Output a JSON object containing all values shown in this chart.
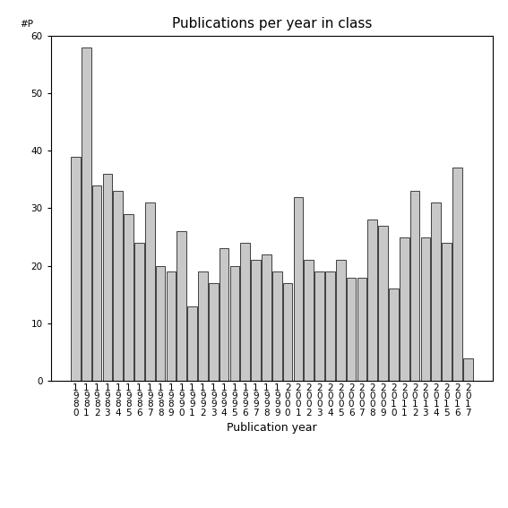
{
  "title": "Publications per year in class",
  "xlabel": "Publication year",
  "ylabel": "#P",
  "years": [
    1980,
    1981,
    1982,
    1983,
    1984,
    1985,
    1986,
    1987,
    1988,
    1989,
    1990,
    1991,
    1992,
    1993,
    1994,
    1995,
    1996,
    1997,
    1998,
    1999,
    2000,
    2001,
    2002,
    2003,
    2004,
    2005,
    2006,
    2007,
    2008,
    2009,
    2010,
    2011,
    2012,
    2013,
    2014,
    2015,
    2016,
    2017
  ],
  "values": [
    39,
    58,
    34,
    36,
    33,
    29,
    24,
    31,
    20,
    19,
    26,
    13,
    19,
    17,
    23,
    20,
    24,
    21,
    22,
    19,
    17,
    32,
    21,
    19,
    19,
    21,
    18,
    18,
    28,
    27,
    16,
    25,
    33,
    25,
    31,
    24,
    37,
    4
  ],
  "bar_color": "#c8c8c8",
  "bar_edgecolor": "#000000",
  "ylim": [
    0,
    60
  ],
  "yticks": [
    0,
    10,
    20,
    30,
    40,
    50,
    60
  ],
  "background_color": "#ffffff",
  "title_fontsize": 11,
  "axis_label_fontsize": 9,
  "tick_fontsize": 7.5
}
